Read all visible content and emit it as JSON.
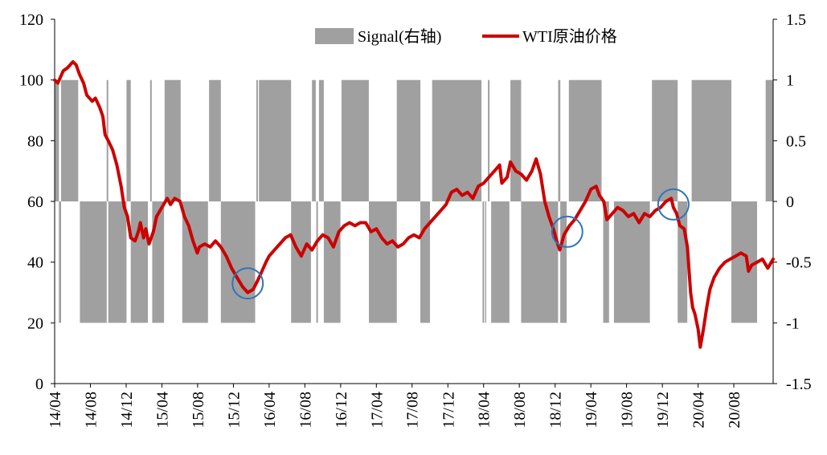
{
  "chart_data": {
    "type": "bar+line",
    "title": "",
    "legend": [
      {
        "label": "Signal(右轴)",
        "kind": "bar",
        "color": "#a0a0a0"
      },
      {
        "label": "WTI原油价格",
        "kind": "line",
        "color": "#cc0000"
      }
    ],
    "legend_position": "top-right",
    "y_left": {
      "min": 0,
      "max": 120,
      "ticks": [
        0,
        20,
        40,
        60,
        80,
        100,
        120
      ]
    },
    "y_right": {
      "min": -1.5,
      "max": 1.5,
      "ticks": [
        -1.5,
        -1,
        -0.5,
        0,
        0.5,
        1,
        1.5
      ],
      "tick_labels": [
        "-1.5",
        "-1",
        "-0.5",
        "0",
        "0.5",
        "1",
        "1.5"
      ]
    },
    "x_axis": {
      "start": 2014.25,
      "end": 2020.95,
      "ticks": [
        {
          "label": "14/04",
          "t": 2014.25
        },
        {
          "label": "14/08",
          "t": 2014.583
        },
        {
          "label": "14/12",
          "t": 2014.917
        },
        {
          "label": "15/04",
          "t": 2015.25
        },
        {
          "label": "15/08",
          "t": 2015.583
        },
        {
          "label": "15/12",
          "t": 2015.917
        },
        {
          "label": "16/04",
          "t": 2016.25
        },
        {
          "label": "16/08",
          "t": 2016.583
        },
        {
          "label": "16/12",
          "t": 2016.917
        },
        {
          "label": "17/04",
          "t": 2017.25
        },
        {
          "label": "17/08",
          "t": 2017.583
        },
        {
          "label": "17/12",
          "t": 2017.917
        },
        {
          "label": "18/04",
          "t": 2018.25
        },
        {
          "label": "18/08",
          "t": 2018.583
        },
        {
          "label": "18/12",
          "t": 2018.917
        },
        {
          "label": "19/04",
          "t": 2019.25
        },
        {
          "label": "19/08",
          "t": 2019.583
        },
        {
          "label": "19/12",
          "t": 2019.917
        },
        {
          "label": "20/04",
          "t": 2020.25
        },
        {
          "label": "20/08",
          "t": 2020.583
        }
      ]
    },
    "signal_segments": [
      {
        "start": 2014.25,
        "end": 2014.29,
        "value": 1
      },
      {
        "start": 2014.29,
        "end": 2014.31,
        "value": -1
      },
      {
        "start": 2014.31,
        "end": 2014.47,
        "value": 1
      },
      {
        "start": 2014.485,
        "end": 2014.735,
        "value": -1
      },
      {
        "start": 2014.735,
        "end": 2014.75,
        "value": 1
      },
      {
        "start": 2014.75,
        "end": 2014.92,
        "value": -1
      },
      {
        "start": 2014.92,
        "end": 2014.96,
        "value": 1
      },
      {
        "start": 2014.96,
        "end": 2015.12,
        "value": -1
      },
      {
        "start": 2015.14,
        "end": 2015.155,
        "value": 1
      },
      {
        "start": 2015.16,
        "end": 2015.27,
        "value": -1
      },
      {
        "start": 2015.275,
        "end": 2015.425,
        "value": 1
      },
      {
        "start": 2015.44,
        "end": 2015.68,
        "value": -1
      },
      {
        "start": 2015.69,
        "end": 2015.8,
        "value": 1
      },
      {
        "start": 2015.8,
        "end": 2016.12,
        "value": -1
      },
      {
        "start": 2016.13,
        "end": 2016.145,
        "value": 1
      },
      {
        "start": 2016.155,
        "end": 2016.455,
        "value": 1
      },
      {
        "start": 2016.455,
        "end": 2016.64,
        "value": -1
      },
      {
        "start": 2016.65,
        "end": 2016.685,
        "value": 1
      },
      {
        "start": 2016.69,
        "end": 2016.705,
        "value": -1
      },
      {
        "start": 2016.715,
        "end": 2016.76,
        "value": 1
      },
      {
        "start": 2016.76,
        "end": 2016.915,
        "value": -1
      },
      {
        "start": 2016.925,
        "end": 2017.18,
        "value": 1
      },
      {
        "start": 2017.18,
        "end": 2017.44,
        "value": -1
      },
      {
        "start": 2017.44,
        "end": 2017.66,
        "value": 1
      },
      {
        "start": 2017.66,
        "end": 2017.75,
        "value": -1
      },
      {
        "start": 2017.77,
        "end": 2018.23,
        "value": 1
      },
      {
        "start": 2018.24,
        "end": 2018.255,
        "value": -1
      },
      {
        "start": 2018.265,
        "end": 2018.275,
        "value": -1
      },
      {
        "start": 2018.29,
        "end": 2018.305,
        "value": 1
      },
      {
        "start": 2018.32,
        "end": 2018.49,
        "value": -1
      },
      {
        "start": 2018.5,
        "end": 2018.6,
        "value": 1
      },
      {
        "start": 2018.6,
        "end": 2018.945,
        "value": -1
      },
      {
        "start": 2018.945,
        "end": 2018.965,
        "value": 1
      },
      {
        "start": 2018.965,
        "end": 2019.025,
        "value": -1
      },
      {
        "start": 2019.045,
        "end": 2019.35,
        "value": 1
      },
      {
        "start": 2019.365,
        "end": 2019.42,
        "value": -1
      },
      {
        "start": 2019.465,
        "end": 2019.8,
        "value": -1
      },
      {
        "start": 2019.82,
        "end": 2020.06,
        "value": 1
      },
      {
        "start": 2020.06,
        "end": 2020.15,
        "value": -1
      },
      {
        "start": 2020.19,
        "end": 2020.56,
        "value": 1
      },
      {
        "start": 2020.56,
        "end": 2020.8,
        "value": -1
      },
      {
        "start": 2020.88,
        "end": 2020.95,
        "value": 1
      }
    ],
    "wti_series": {
      "name": "WTI原油价格",
      "points": [
        [
          2014.25,
          100
        ],
        [
          2014.28,
          99
        ],
        [
          2014.33,
          103
        ],
        [
          2014.37,
          104
        ],
        [
          2014.42,
          106
        ],
        [
          2014.45,
          105
        ],
        [
          2014.48,
          102
        ],
        [
          2014.52,
          99
        ],
        [
          2014.55,
          95
        ],
        [
          2014.6,
          93
        ],
        [
          2014.63,
          94
        ],
        [
          2014.67,
          91
        ],
        [
          2014.7,
          88
        ],
        [
          2014.72,
          82
        ],
        [
          2014.75,
          80
        ],
        [
          2014.79,
          77
        ],
        [
          2014.83,
          72
        ],
        [
          2014.87,
          65
        ],
        [
          2014.9,
          58
        ],
        [
          2014.93,
          55
        ],
        [
          2014.96,
          48
        ],
        [
          2015.0,
          47
        ],
        [
          2015.03,
          50
        ],
        [
          2015.05,
          53
        ],
        [
          2015.08,
          48
        ],
        [
          2015.1,
          51
        ],
        [
          2015.13,
          46
        ],
        [
          2015.17,
          50
        ],
        [
          2015.2,
          55
        ],
        [
          2015.25,
          58
        ],
        [
          2015.3,
          61
        ],
        [
          2015.33,
          59
        ],
        [
          2015.37,
          61
        ],
        [
          2015.42,
          60
        ],
        [
          2015.46,
          55
        ],
        [
          2015.5,
          52
        ],
        [
          2015.54,
          47
        ],
        [
          2015.58,
          43
        ],
        [
          2015.6,
          45
        ],
        [
          2015.65,
          46
        ],
        [
          2015.7,
          45
        ],
        [
          2015.75,
          47
        ],
        [
          2015.8,
          45
        ],
        [
          2015.85,
          42
        ],
        [
          2015.9,
          38
        ],
        [
          2015.95,
          35
        ],
        [
          2016.0,
          32
        ],
        [
          2016.05,
          30
        ],
        [
          2016.1,
          31
        ],
        [
          2016.13,
          33
        ],
        [
          2016.17,
          36
        ],
        [
          2016.22,
          40
        ],
        [
          2016.25,
          42
        ],
        [
          2016.3,
          44
        ],
        [
          2016.35,
          46
        ],
        [
          2016.4,
          48
        ],
        [
          2016.45,
          49
        ],
        [
          2016.5,
          45
        ],
        [
          2016.55,
          42
        ],
        [
          2016.6,
          46
        ],
        [
          2016.65,
          44
        ],
        [
          2016.7,
          47
        ],
        [
          2016.75,
          49
        ],
        [
          2016.8,
          48
        ],
        [
          2016.85,
          45
        ],
        [
          2016.9,
          50
        ],
        [
          2016.95,
          52
        ],
        [
          2017.0,
          53
        ],
        [
          2017.05,
          52
        ],
        [
          2017.1,
          53
        ],
        [
          2017.15,
          53
        ],
        [
          2017.2,
          50
        ],
        [
          2017.25,
          51
        ],
        [
          2017.3,
          48
        ],
        [
          2017.35,
          46
        ],
        [
          2017.4,
          47
        ],
        [
          2017.45,
          45
        ],
        [
          2017.5,
          46
        ],
        [
          2017.55,
          48
        ],
        [
          2017.6,
          49
        ],
        [
          2017.65,
          48
        ],
        [
          2017.7,
          51
        ],
        [
          2017.75,
          53
        ],
        [
          2017.8,
          55
        ],
        [
          2017.85,
          57
        ],
        [
          2017.9,
          59
        ],
        [
          2017.95,
          63
        ],
        [
          2018.0,
          64
        ],
        [
          2018.05,
          62
        ],
        [
          2018.1,
          63
        ],
        [
          2018.15,
          61
        ],
        [
          2018.2,
          65
        ],
        [
          2018.25,
          66
        ],
        [
          2018.3,
          68
        ],
        [
          2018.35,
          70
        ],
        [
          2018.4,
          72
        ],
        [
          2018.42,
          66
        ],
        [
          2018.47,
          68
        ],
        [
          2018.5,
          73
        ],
        [
          2018.55,
          70
        ],
        [
          2018.6,
          69
        ],
        [
          2018.65,
          67
        ],
        [
          2018.7,
          70
        ],
        [
          2018.74,
          74
        ],
        [
          2018.78,
          69
        ],
        [
          2018.82,
          60
        ],
        [
          2018.86,
          55
        ],
        [
          2018.9,
          51
        ],
        [
          2018.94,
          46
        ],
        [
          2018.96,
          44
        ],
        [
          2019.0,
          49
        ],
        [
          2019.05,
          52
        ],
        [
          2019.1,
          54
        ],
        [
          2019.15,
          57
        ],
        [
          2019.2,
          60
        ],
        [
          2019.25,
          64
        ],
        [
          2019.3,
          65
        ],
        [
          2019.33,
          62
        ],
        [
          2019.37,
          60
        ],
        [
          2019.4,
          54
        ],
        [
          2019.45,
          56
        ],
        [
          2019.5,
          58
        ],
        [
          2019.55,
          57
        ],
        [
          2019.6,
          55
        ],
        [
          2019.65,
          56
        ],
        [
          2019.7,
          53
        ],
        [
          2019.75,
          56
        ],
        [
          2019.8,
          55
        ],
        [
          2019.85,
          57
        ],
        [
          2019.9,
          58
        ],
        [
          2019.95,
          60
        ],
        [
          2020.0,
          61
        ],
        [
          2020.02,
          58
        ],
        [
          2020.05,
          56
        ],
        [
          2020.08,
          52
        ],
        [
          2020.12,
          51
        ],
        [
          2020.15,
          45
        ],
        [
          2020.18,
          30
        ],
        [
          2020.2,
          25
        ],
        [
          2020.22,
          23
        ],
        [
          2020.25,
          18
        ],
        [
          2020.27,
          12
        ],
        [
          2020.3,
          18
        ],
        [
          2020.33,
          25
        ],
        [
          2020.36,
          31
        ],
        [
          2020.4,
          35
        ],
        [
          2020.45,
          38
        ],
        [
          2020.5,
          40
        ],
        [
          2020.55,
          41
        ],
        [
          2020.6,
          42
        ],
        [
          2020.65,
          43
        ],
        [
          2020.7,
          42
        ],
        [
          2020.72,
          37
        ],
        [
          2020.75,
          39
        ],
        [
          2020.8,
          40
        ],
        [
          2020.85,
          41
        ],
        [
          2020.9,
          38
        ],
        [
          2020.95,
          41
        ]
      ]
    },
    "annotations": [
      {
        "kind": "circle",
        "t": 2016.05,
        "value": 33
      },
      {
        "kind": "circle",
        "t": 2019.03,
        "value": 50
      },
      {
        "kind": "circle",
        "t": 2020.02,
        "value": 59
      }
    ]
  }
}
